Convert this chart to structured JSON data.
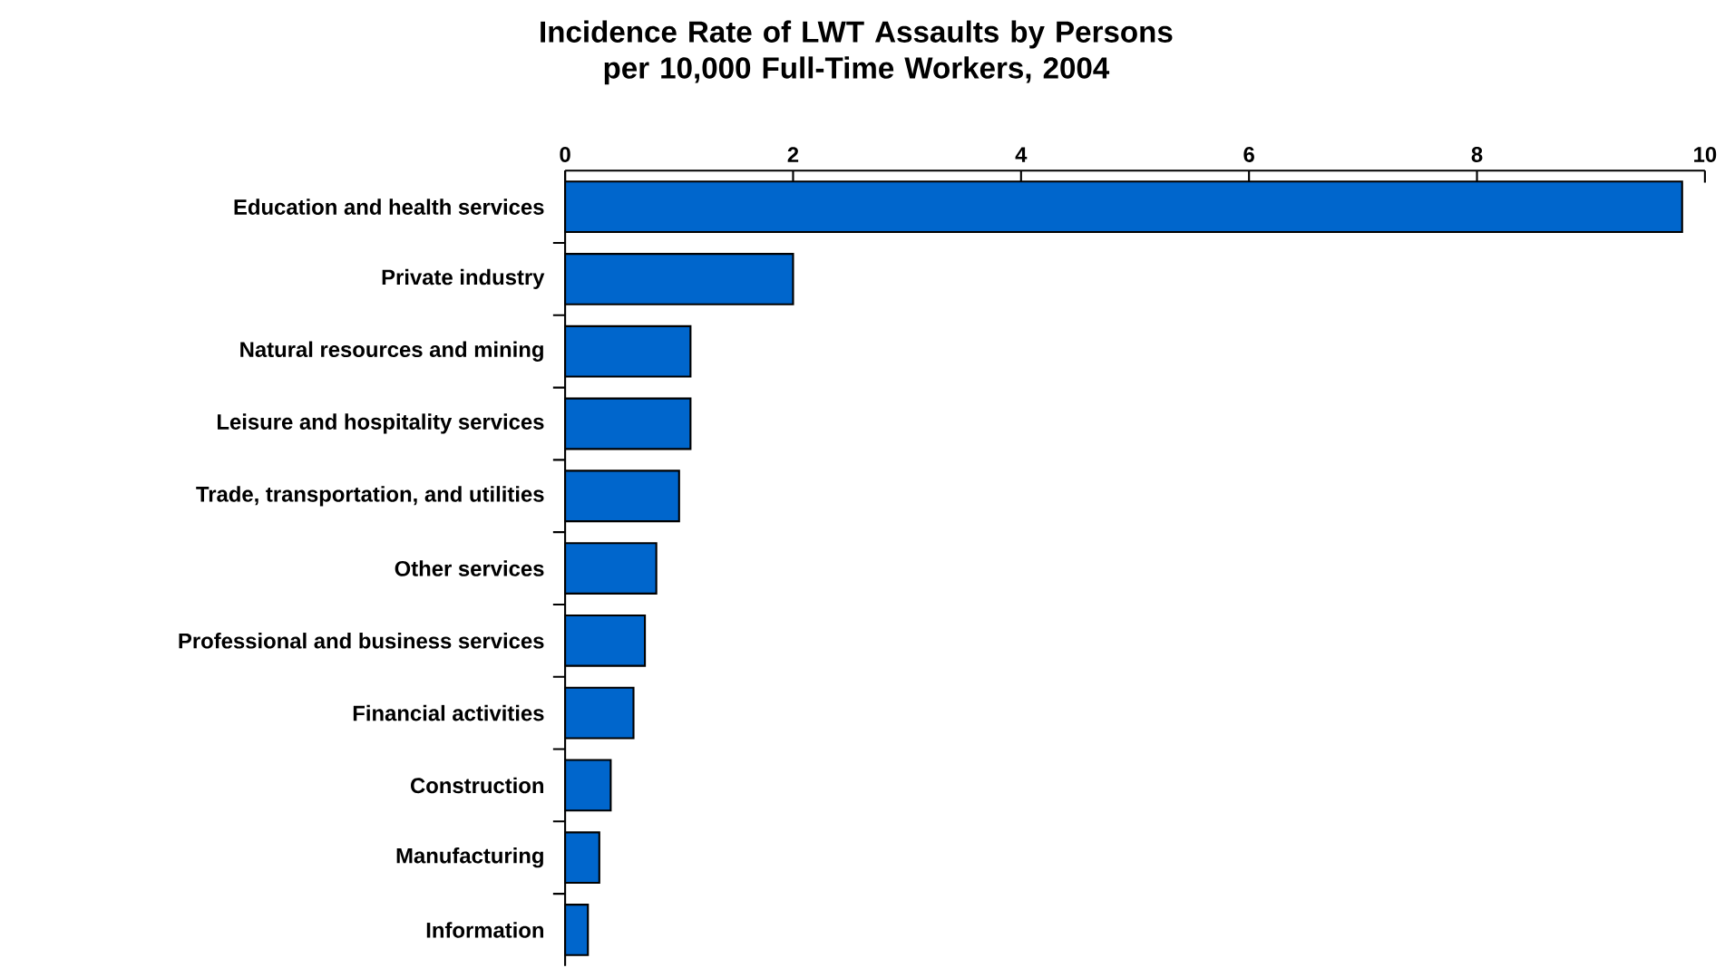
{
  "chart_data": {
    "type": "bar",
    "orientation": "horizontal",
    "title": "Incidence Rate of LWT Assaults by Persons per 10,000 Full-Time Workers, 2004",
    "categories": [
      "Education and health services",
      "Private industry",
      "Natural resources and mining",
      "Leisure and hospitality services",
      "Trade, transportation, and utilities",
      "Other services",
      "Professional and business services",
      "Financial activities",
      "Construction",
      "Manufacturing",
      "Information"
    ],
    "values": [
      9.8,
      2.0,
      1.1,
      1.1,
      1.0,
      0.8,
      0.7,
      0.6,
      0.4,
      0.3,
      0.2
    ],
    "color": "#0066cc",
    "xlim": [
      0,
      10
    ],
    "xticks": [
      0,
      2,
      4,
      6,
      8,
      10
    ]
  }
}
